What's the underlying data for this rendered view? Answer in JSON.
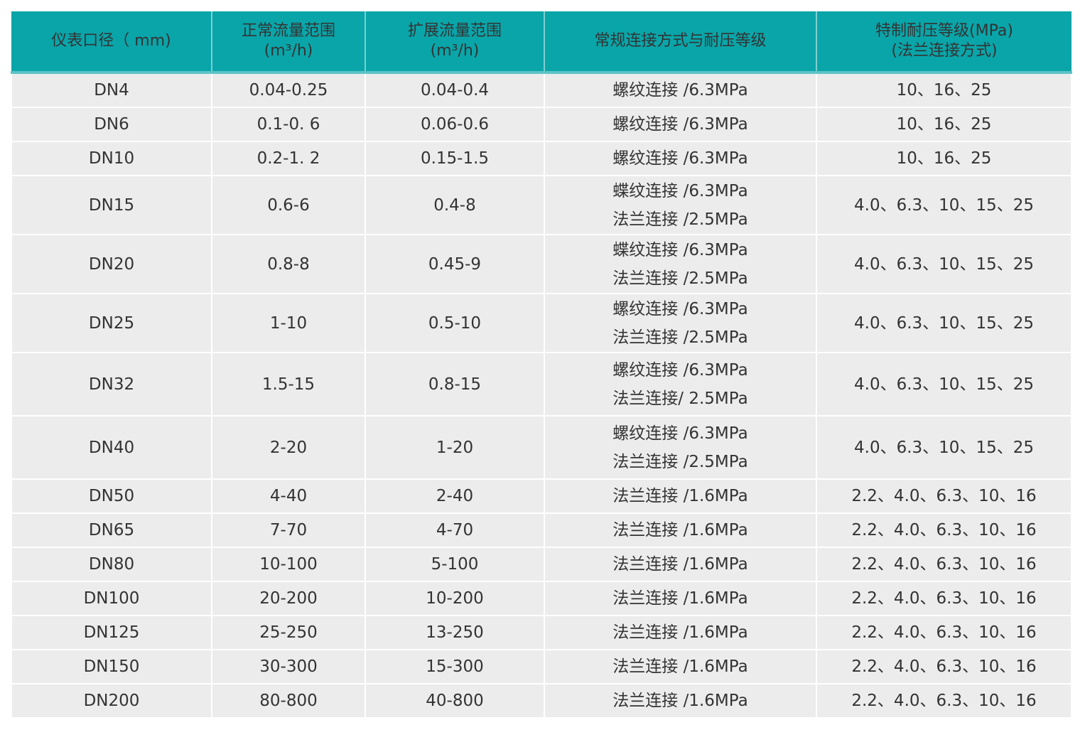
{
  "table": {
    "headers": [
      {
        "line1": "仪表口径（ mm)",
        "line2": ""
      },
      {
        "line1": "正常流量范围",
        "line2": "(m³/h)"
      },
      {
        "line1": "扩展流量范围",
        "line2": "(m³/h)"
      },
      {
        "line1": "常规连接方式与耐压等级",
        "line2": ""
      },
      {
        "line1": "特制耐压等级(MPa)",
        "line2": "(法兰连接方式)"
      }
    ],
    "header_color": "#0aa5a9",
    "rows": [
      {
        "dn": "DN4",
        "normal": "0.04-0.25",
        "ext": "0.04-0.4",
        "conn": [
          "螺纹连接 /6.3MPa"
        ],
        "special": "10、16、25"
      },
      {
        "dn": "DN6",
        "normal": "0.1-0. 6",
        "ext": "0.06-0.6",
        "conn": [
          "螺纹连接 /6.3MPa"
        ],
        "special": "10、16、25"
      },
      {
        "dn": "DN10",
        "normal": "0.2-1. 2",
        "ext": "0.15-1.5",
        "conn": [
          "螺纹连接 /6.3MPa"
        ],
        "special": "10、16、25"
      },
      {
        "dn": "DN15",
        "normal": "0.6-6",
        "ext": "0.4-8",
        "conn": [
          "蝶纹连接 /6.3MPa",
          "法兰连接 /2.5MPa"
        ],
        "special": "4.0、6.3、10、15、25"
      },
      {
        "dn": "DN20",
        "normal": "0.8-8",
        "ext": "0.45-9",
        "conn": [
          "蝶纹连接 /6.3MPa",
          "法兰连接 /2.5MPa"
        ],
        "special": "4.0、6.3、10、15、25"
      },
      {
        "dn": "DN25",
        "normal": "1-10",
        "ext": "0.5-10",
        "conn": [
          "螺纹连接 /6.3MPa",
          "法兰连接 /2.5MPa"
        ],
        "special": "4.0、6.3、10、15、25"
      },
      {
        "dn": "DN32",
        "normal": "1.5-15",
        "ext": "0.8-15",
        "conn": [
          "螺纹连接 /6.3MPa",
          "法兰连接/ 2.5MPa"
        ],
        "special": "4.0、6.3、10、15、25"
      },
      {
        "dn": "DN40",
        "normal": "2-20",
        "ext": "1-20",
        "conn": [
          "螺纹连接 /6.3MPa",
          "法兰连接 /2.5MPa"
        ],
        "special": "4.0、6.3、10、15、25"
      },
      {
        "dn": "DN50",
        "normal": "4-40",
        "ext": "2-40",
        "conn": [
          "法兰连接 /1.6MPa"
        ],
        "special": "2.2、4.0、6.3、10、16"
      },
      {
        "dn": "DN65",
        "normal": "7-70",
        "ext": "4-70",
        "conn": [
          "法兰连接 /1.6MPa"
        ],
        "special": "2.2、4.0、6.3、10、16"
      },
      {
        "dn": "DN80",
        "normal": "10-100",
        "ext": "5-100",
        "conn": [
          "法兰连接 /1.6MPa"
        ],
        "special": "2.2、4.0、6.3、10、16"
      },
      {
        "dn": "DN100",
        "normal": "20-200",
        "ext": "10-200",
        "conn": [
          "法兰连接 /1.6MPa"
        ],
        "special": "2.2、4.0、6.3、10、16"
      },
      {
        "dn": "DN125",
        "normal": "25-250",
        "ext": "13-250",
        "conn": [
          "法兰连接 /1.6MPa"
        ],
        "special": "2.2、4.0、6.3、10、16"
      },
      {
        "dn": "DN150",
        "normal": "30-300",
        "ext": "15-300",
        "conn": [
          "法兰连接 /1.6MPa"
        ],
        "special": "2.2、4.0、6.3、10、16"
      },
      {
        "dn": "DN200",
        "normal": "80-800",
        "ext": "40-800",
        "conn": [
          "法兰连接 /1.6MPa"
        ],
        "special": "2.2、4.0、6.3、10、16"
      }
    ]
  }
}
